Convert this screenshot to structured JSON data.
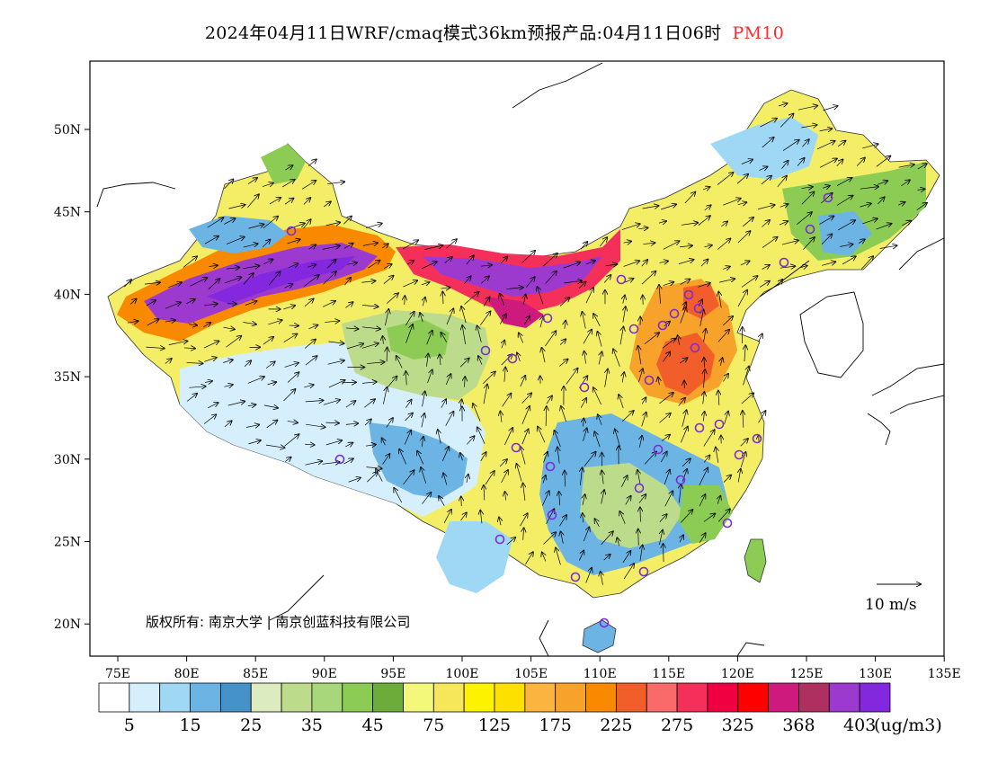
{
  "header": {
    "title": "2024年04月11日WRF/cmaq模式36km预报产品:04月11日06时",
    "variable": "PM10",
    "variable_color": "#ff2a2a"
  },
  "map": {
    "lon_ticks": [
      "75E",
      "80E",
      "85E",
      "90E",
      "95E",
      "100E",
      "105E",
      "110E",
      "115E",
      "120E",
      "125E",
      "130E",
      "135E"
    ],
    "lat_ticks": [
      "50N",
      "45N",
      "40N",
      "35N",
      "30N",
      "25N",
      "20N"
    ],
    "copyright": "版权所有: 南京大学 | 南京创蓝科技有限公司",
    "wind_scale_label": "10 m/s",
    "colorbar": {
      "colors": [
        "#ffffff",
        "#d5effc",
        "#9fd8f5",
        "#6cb4e4",
        "#4592c9",
        "#dcebc0",
        "#bcdc8c",
        "#a8d67a",
        "#8ccc54",
        "#6cac3a",
        "#f3f77a",
        "#f5e65a",
        "#fdf300",
        "#fde000",
        "#fbb440",
        "#f7a22a",
        "#f98a00",
        "#f25e2a",
        "#fb6a6a",
        "#f4305a",
        "#f00040",
        "#fe0000",
        "#cd1a7c",
        "#ad3060",
        "#9c3ad0",
        "#8428e0"
      ],
      "labels": [
        "5",
        "15",
        "25",
        "35",
        "45",
        "75",
        "125",
        "175",
        "225",
        "275",
        "325",
        "368",
        "403"
      ],
      "unit": "(ug/m3)"
    }
  }
}
